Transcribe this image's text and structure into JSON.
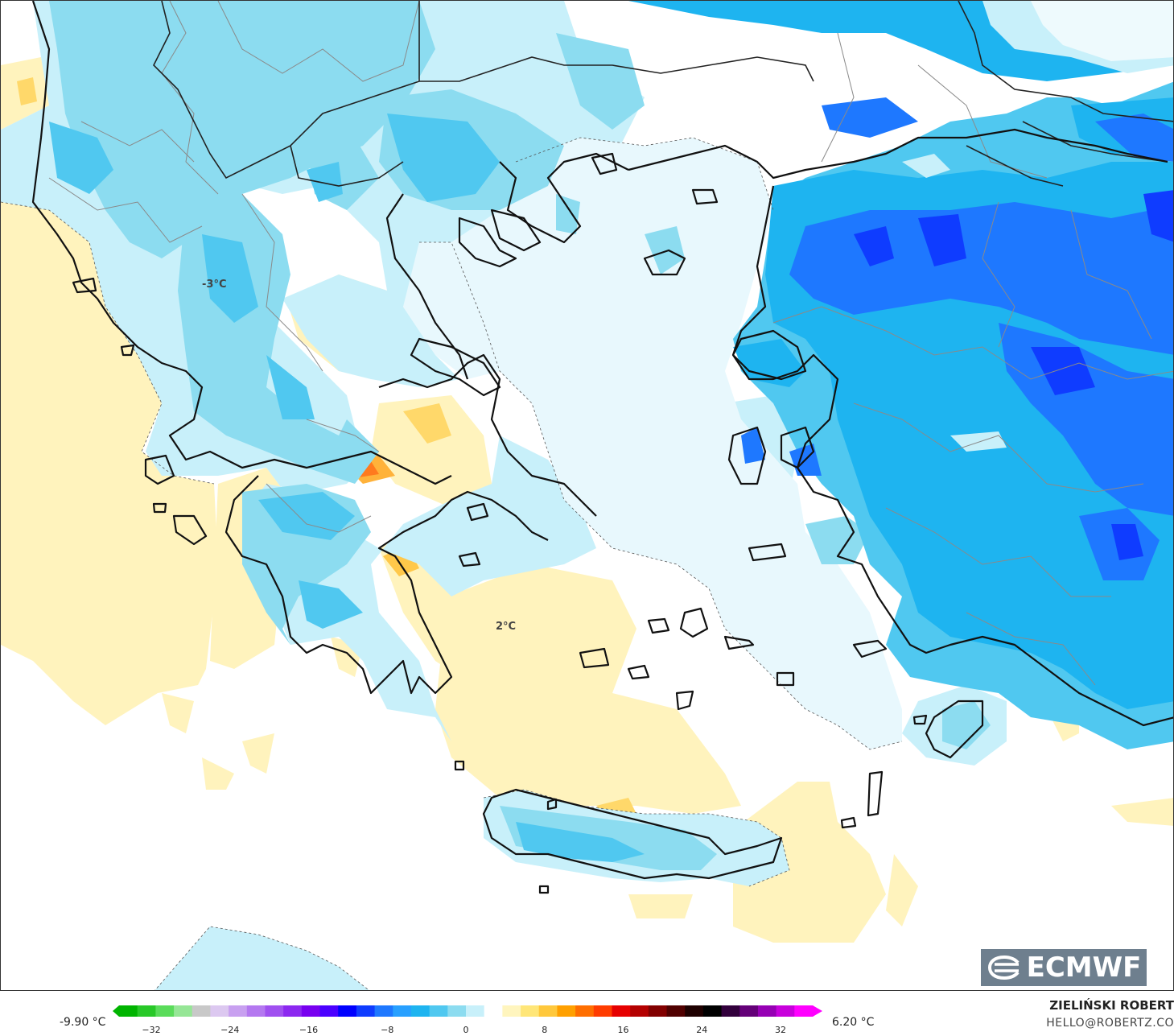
{
  "map": {
    "labels": [
      {
        "text": "-3°C"
      },
      {
        "text": "2°C"
      }
    ],
    "logo_text": "ECMWF"
  },
  "legend": {
    "min_label": "-9.90 °C",
    "max_label": "6.20 °C",
    "ticks": [
      "−32",
      "−24",
      "−16",
      "−8",
      "0",
      "8",
      "16",
      "24",
      "32"
    ],
    "colors": [
      "#00b400",
      "#28c828",
      "#5adc5a",
      "#96e696",
      "#c8c8c8",
      "#dcc8f0",
      "#c8a0f0",
      "#b478f0",
      "#a050f0",
      "#8c28f0",
      "#7800f0",
      "#4b00ff",
      "#0000ff",
      "#0f3cff",
      "#1e78ff",
      "#28a0ff",
      "#1eb4f0",
      "#50c8f0",
      "#8cdcf0",
      "#c8f0fa",
      "#ffffff",
      "#fff5be",
      "#ffe678",
      "#ffc83c",
      "#ffa000",
      "#ff6e00",
      "#ff3c00",
      "#e60000",
      "#b40000",
      "#820000",
      "#500000",
      "#1e0000",
      "#000000",
      "#32003c",
      "#640078",
      "#9600b4",
      "#c800dc",
      "#ff00ff"
    ]
  },
  "credits": {
    "author": "ZIELIŃSKI ROBERT",
    "email": "HELLO@ROBERTZ.CO"
  }
}
